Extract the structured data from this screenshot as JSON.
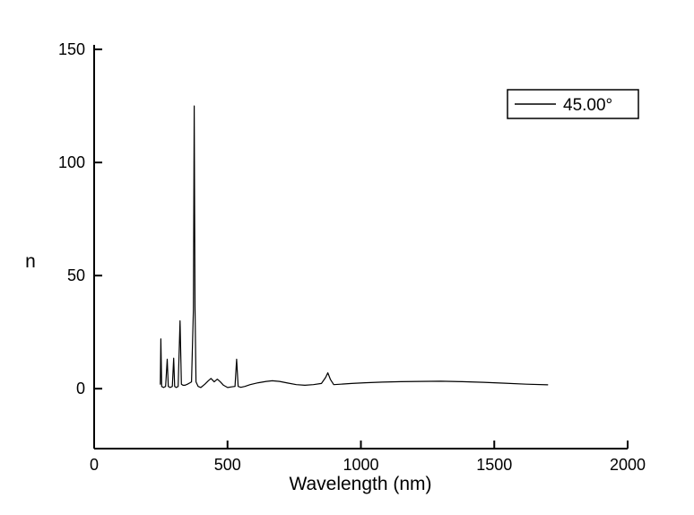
{
  "chart_data": {
    "type": "line",
    "title": "",
    "xlabel": "Wavelength (nm)",
    "ylabel": "n",
    "xlim": [
      0,
      2000
    ],
    "ylim": [
      -26.5,
      152
    ],
    "x_ticks": [
      0,
      500,
      1000,
      1500,
      2000
    ],
    "y_ticks": [
      0,
      50,
      100,
      150
    ],
    "grid": false,
    "axis_color": "#000000",
    "line_color": "#000000",
    "legend": {
      "position": "top-right",
      "entries": [
        {
          "label": "45.00°",
          "color": "#000000"
        }
      ]
    },
    "series": [
      {
        "name": "45.00°",
        "points": [
          [
            248,
            2
          ],
          [
            250,
            22
          ],
          [
            253,
            1
          ],
          [
            260,
            0.5
          ],
          [
            268,
            1
          ],
          [
            274,
            13
          ],
          [
            278,
            1
          ],
          [
            285,
            0.5
          ],
          [
            293,
            1
          ],
          [
            298,
            13.5
          ],
          [
            302,
            1
          ],
          [
            308,
            0.5
          ],
          [
            315,
            1
          ],
          [
            322,
            30
          ],
          [
            327,
            2
          ],
          [
            333,
            1.5
          ],
          [
            340,
            1.5
          ],
          [
            350,
            2
          ],
          [
            358,
            2.5
          ],
          [
            365,
            3
          ],
          [
            372,
            35
          ],
          [
            375,
            125
          ],
          [
            378,
            36
          ],
          [
            382,
            3
          ],
          [
            390,
            1
          ],
          [
            400,
            0.5
          ],
          [
            415,
            2
          ],
          [
            428,
            3.5
          ],
          [
            438,
            4.5
          ],
          [
            450,
            3
          ],
          [
            462,
            4.2
          ],
          [
            473,
            3
          ],
          [
            485,
            1.5
          ],
          [
            500,
            0.5
          ],
          [
            515,
            0.8
          ],
          [
            528,
            1
          ],
          [
            534,
            13
          ],
          [
            540,
            1
          ],
          [
            550,
            0.6
          ],
          [
            565,
            1
          ],
          [
            585,
            1.8
          ],
          [
            615,
            2.6
          ],
          [
            645,
            3.2
          ],
          [
            668,
            3.5
          ],
          [
            695,
            3.2
          ],
          [
            725,
            2.5
          ],
          [
            758,
            1.8
          ],
          [
            790,
            1.5
          ],
          [
            822,
            1.8
          ],
          [
            852,
            2.3
          ],
          [
            868,
            5
          ],
          [
            876,
            7
          ],
          [
            886,
            4
          ],
          [
            898,
            1.8
          ],
          [
            925,
            2
          ],
          [
            965,
            2.3
          ],
          [
            1015,
            2.6
          ],
          [
            1080,
            2.9
          ],
          [
            1150,
            3.1
          ],
          [
            1220,
            3.2
          ],
          [
            1300,
            3.3
          ],
          [
            1380,
            3.1
          ],
          [
            1460,
            2.8
          ],
          [
            1540,
            2.4
          ],
          [
            1620,
            2
          ],
          [
            1700,
            1.7
          ]
        ]
      }
    ]
  }
}
